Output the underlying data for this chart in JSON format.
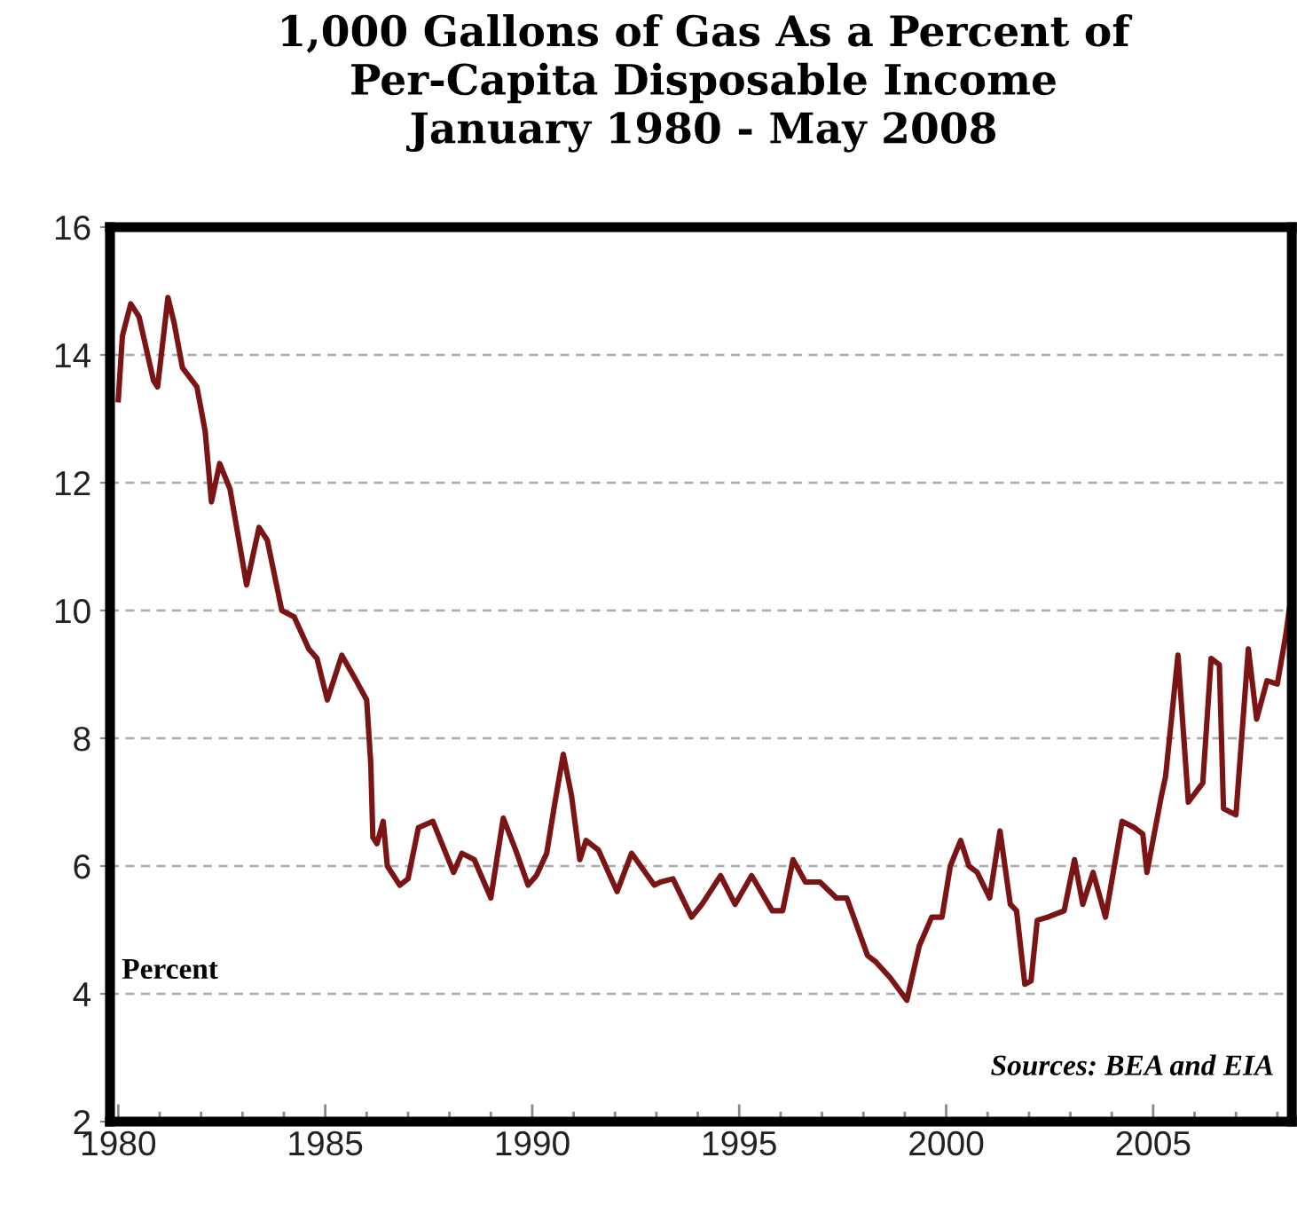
{
  "chart_data": {
    "type": "line",
    "title": "1,000 Gallons of Gas As a Percent of\nPer-Capita Disposable Income\nJanuary 1980 - May 2008",
    "ylabel": "Percent",
    "annotations": [
      "Sources: BEA and EIA"
    ],
    "x": [
      1980.0,
      1980.1,
      1980.3,
      1980.5,
      1980.85,
      1980.95,
      1981.2,
      1981.35,
      1981.55,
      1981.9,
      1982.1,
      1982.25,
      1982.45,
      1982.7,
      1983.1,
      1983.4,
      1983.6,
      1983.95,
      1984.25,
      1984.6,
      1984.8,
      1985.05,
      1985.4,
      1985.75,
      1986.0,
      1986.1,
      1986.15,
      1986.25,
      1986.4,
      1986.5,
      1986.8,
      1987.0,
      1987.25,
      1987.6,
      1988.1,
      1988.3,
      1988.6,
      1989.0,
      1989.3,
      1989.6,
      1989.9,
      1990.1,
      1990.35,
      1990.55,
      1990.75,
      1990.95,
      1991.15,
      1991.3,
      1991.6,
      1992.05,
      1992.4,
      1992.95,
      1993.1,
      1993.4,
      1993.85,
      1994.1,
      1994.55,
      1994.9,
      1995.3,
      1995.8,
      1996.05,
      1996.3,
      1996.6,
      1996.95,
      1997.35,
      1997.6,
      1998.1,
      1998.3,
      1998.65,
      1999.05,
      1999.35,
      1999.65,
      1999.9,
      2000.1,
      2000.35,
      2000.55,
      2000.75,
      2001.05,
      2001.3,
      2001.55,
      2001.7,
      2001.9,
      2002.05,
      2002.2,
      2002.45,
      2002.85,
      2003.1,
      2003.3,
      2003.55,
      2003.85,
      2004.25,
      2004.55,
      2004.75,
      2004.85,
      2005.2,
      2005.3,
      2005.6,
      2005.85,
      2006.2,
      2006.4,
      2006.6,
      2006.7,
      2007.0,
      2007.3,
      2007.5,
      2007.75,
      2008.0,
      2008.2,
      2008.35
    ],
    "series": [
      {
        "color": "#7b1414",
        "values": [
          13.3,
          14.3,
          14.8,
          14.6,
          13.6,
          13.5,
          14.9,
          14.5,
          13.8,
          13.5,
          12.8,
          11.7,
          12.3,
          11.9,
          10.4,
          11.3,
          11.1,
          10.0,
          9.9,
          9.4,
          9.25,
          8.6,
          9.3,
          8.9,
          8.6,
          7.6,
          6.45,
          6.35,
          6.7,
          6.0,
          5.7,
          5.8,
          6.6,
          6.7,
          5.9,
          6.2,
          6.1,
          5.5,
          6.75,
          6.25,
          5.7,
          5.85,
          6.2,
          7.0,
          7.75,
          7.1,
          6.1,
          6.4,
          6.25,
          5.6,
          6.2,
          5.7,
          5.75,
          5.8,
          5.2,
          5.4,
          5.85,
          5.4,
          5.85,
          5.3,
          5.3,
          6.1,
          5.75,
          5.75,
          5.5,
          5.5,
          4.6,
          4.5,
          4.25,
          3.9,
          4.75,
          5.2,
          5.2,
          6.0,
          6.4,
          6.0,
          5.9,
          5.5,
          6.55,
          5.4,
          5.3,
          4.15,
          4.2,
          5.15,
          5.2,
          5.3,
          6.1,
          5.4,
          5.9,
          5.2,
          6.7,
          6.6,
          6.5,
          5.9,
          7.1,
          7.4,
          9.3,
          7.0,
          7.3,
          9.25,
          9.15,
          6.9,
          6.8,
          9.4,
          8.3,
          8.9,
          8.85,
          9.6,
          10.3
        ]
      }
    ],
    "xlim": [
      1979.8,
      2008.35
    ],
    "xticks": [
      1980,
      1985,
      1990,
      1995,
      2000,
      2005
    ],
    "ylim": [
      2,
      16
    ],
    "yticks": [
      2,
      4,
      6,
      8,
      10,
      12,
      14,
      16
    ],
    "grid": "y",
    "line_style": "solid"
  }
}
